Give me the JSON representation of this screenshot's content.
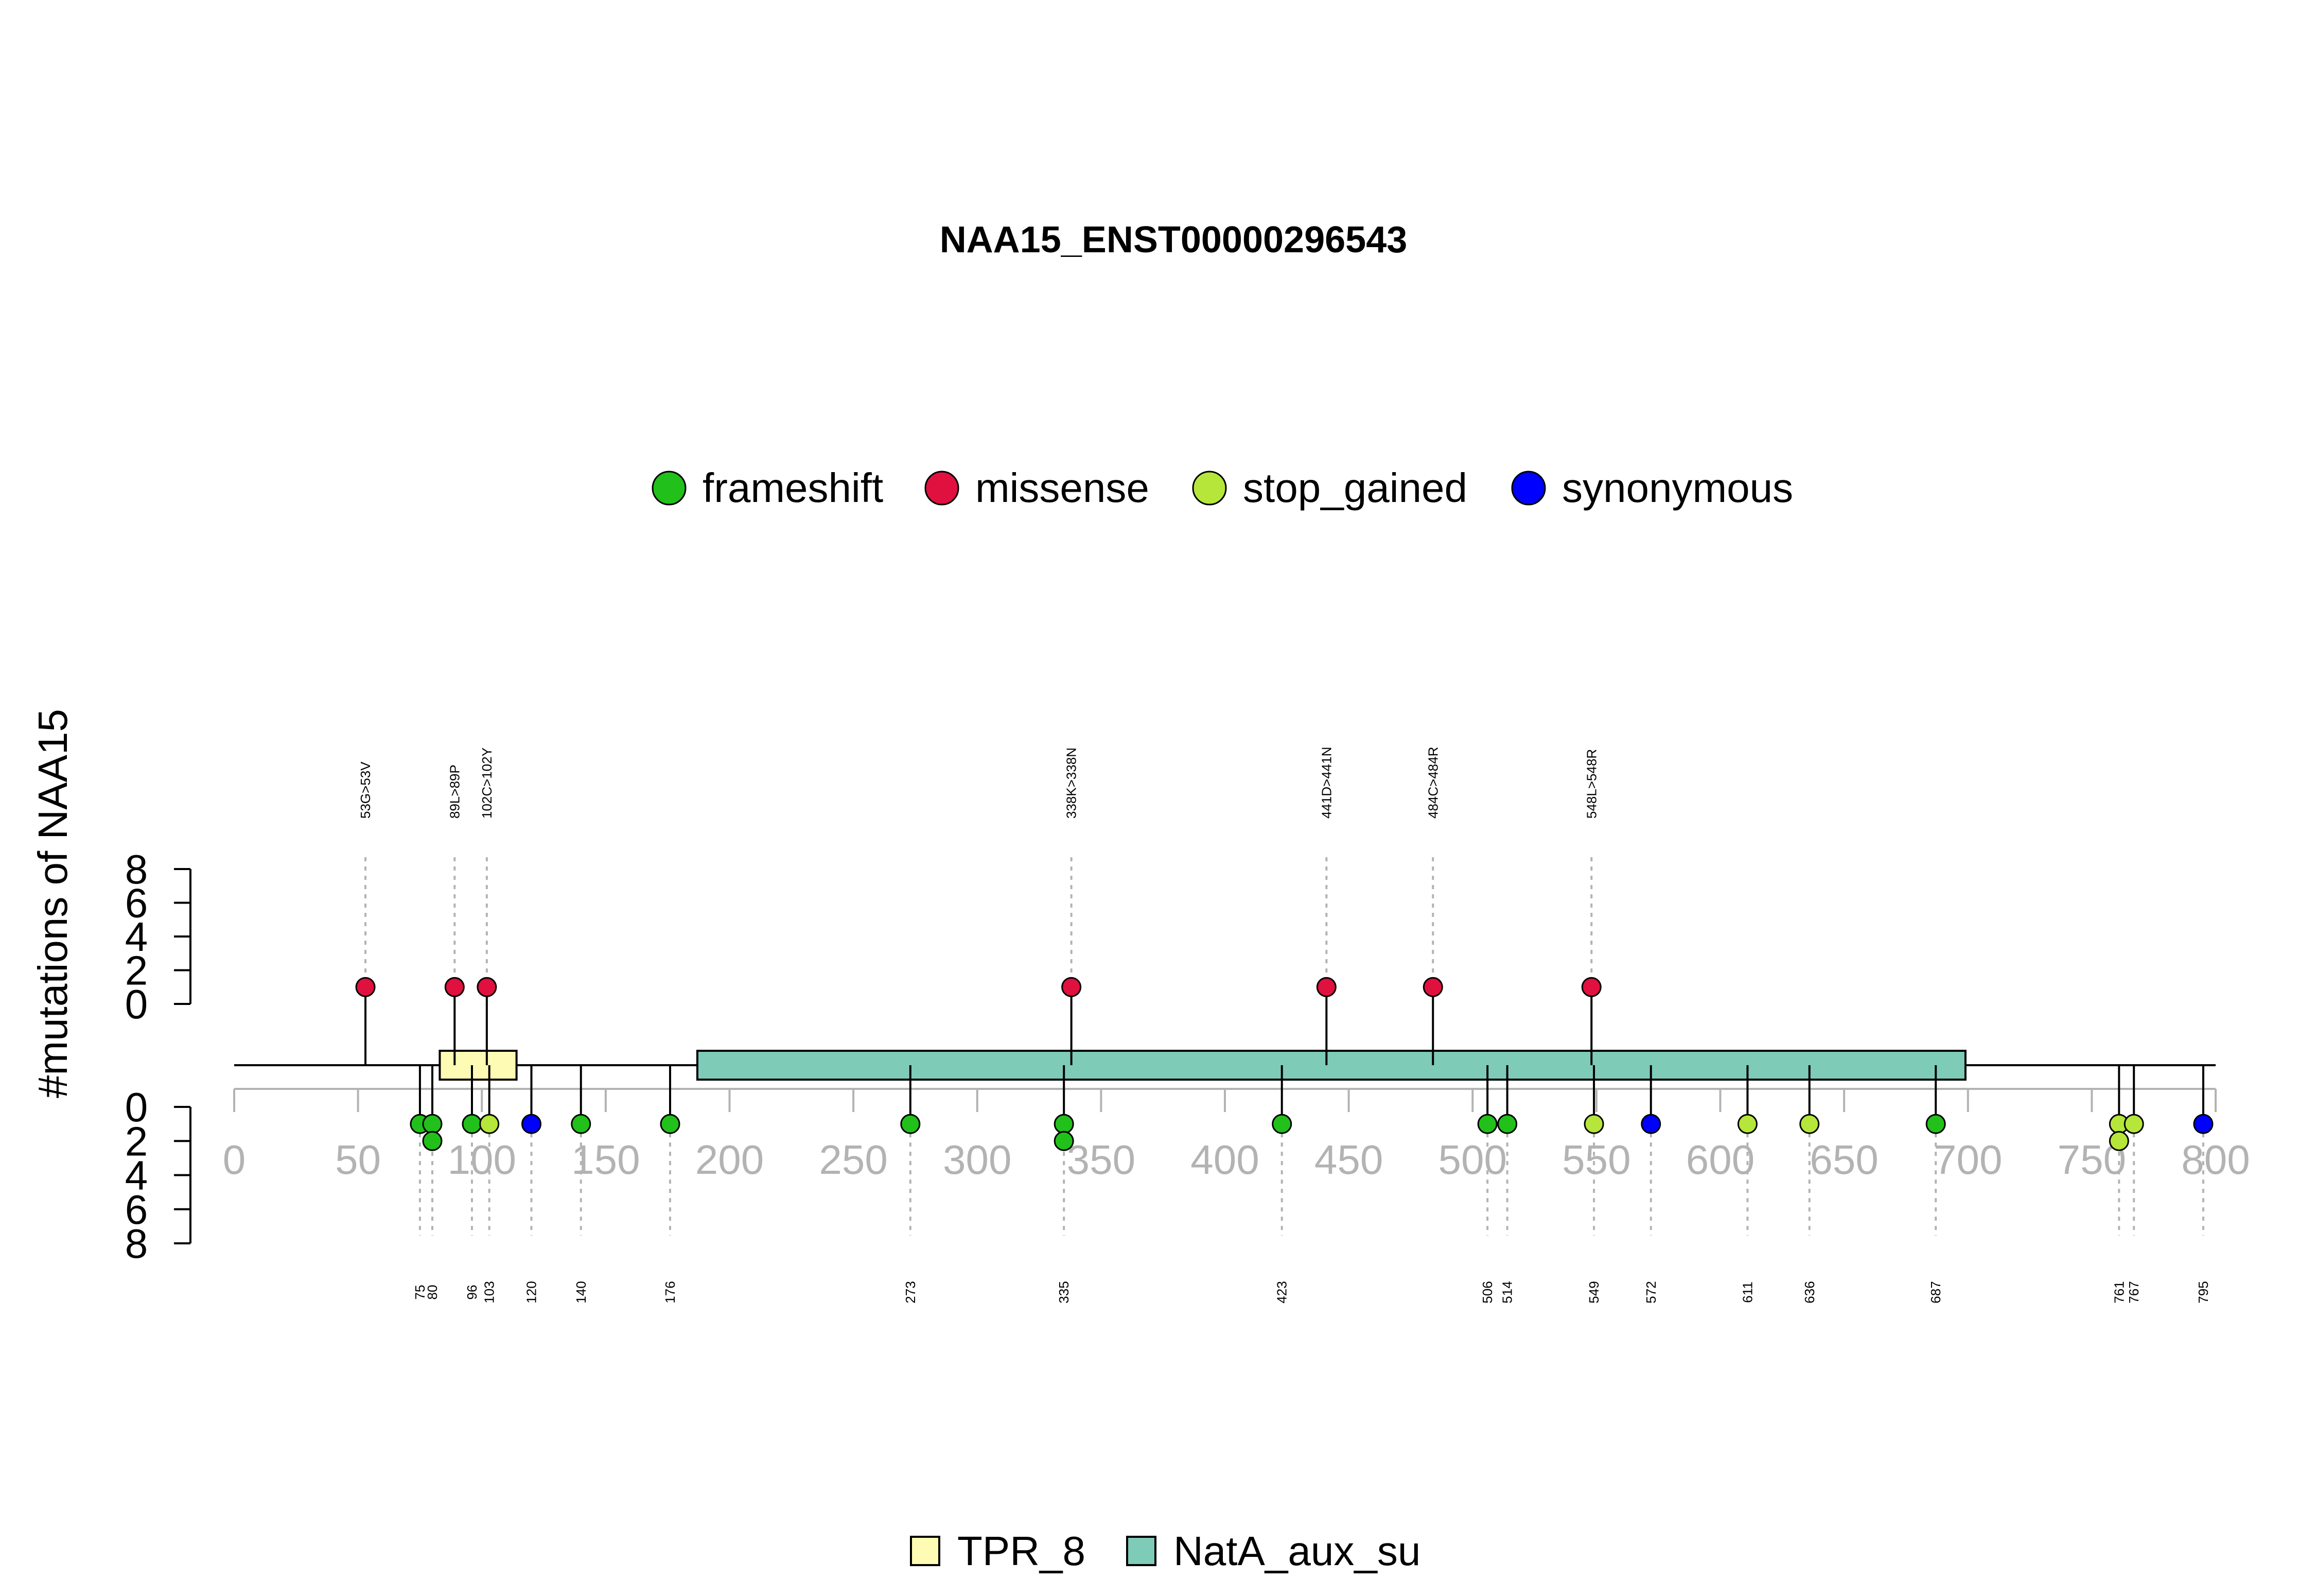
{
  "chart_data": {
    "type": "lollipop",
    "title": "NAA15_ENST00000296543",
    "ylabel": "#mutations of NAA15",
    "xlim": [
      0,
      800
    ],
    "x_ticks": [
      0,
      50,
      100,
      150,
      200,
      250,
      300,
      350,
      400,
      450,
      500,
      550,
      600,
      650,
      700,
      750,
      800
    ],
    "y_ticks": [
      0,
      2,
      4,
      6,
      8
    ],
    "ylim": [
      0,
      8
    ],
    "colors": {
      "frameshift": "#22c01a",
      "missense": "#e0103f",
      "stop_gained": "#b5e639",
      "synonymous": "#0000ff",
      "TPR_8": "#fdfbb4",
      "NatA_aux_su": "#7ecbb8"
    },
    "legend": [
      {
        "name": "frameshift",
        "color": "#22c01a"
      },
      {
        "name": "missense",
        "color": "#e0103f"
      },
      {
        "name": "stop_gained",
        "color": "#b5e639"
      },
      {
        "name": "synonymous",
        "color": "#0000ff"
      }
    ],
    "domain_legend": [
      {
        "name": "TPR_8",
        "color": "#fdfbb4"
      },
      {
        "name": "NatA_aux_su",
        "color": "#7ecbb8"
      }
    ],
    "domains": [
      {
        "name": "TPR_8",
        "start": 83,
        "end": 114
      },
      {
        "name": "NatA_aux_su",
        "start": 187,
        "end": 699
      }
    ],
    "top_mutations": [
      {
        "position": 53,
        "label": "53G>53V",
        "type": "missense",
        "count": 1
      },
      {
        "position": 89,
        "label": "89L>89P",
        "type": "missense",
        "count": 1
      },
      {
        "position": 102,
        "label": "102C>102Y",
        "type": "missense",
        "count": 1
      },
      {
        "position": 338,
        "label": "338K>338N",
        "type": "missense",
        "count": 1
      },
      {
        "position": 441,
        "label": "441D>441N",
        "type": "missense",
        "count": 1
      },
      {
        "position": 484,
        "label": "484C>484R",
        "type": "missense",
        "count": 1
      },
      {
        "position": 548,
        "label": "548L>548R",
        "type": "missense",
        "count": 1
      }
    ],
    "bottom_mutations": [
      {
        "position": 75,
        "label": "75",
        "type": "frameshift",
        "count": 1
      },
      {
        "position": 80,
        "label": "80",
        "type": "frameshift",
        "count": 2
      },
      {
        "position": 96,
        "label": "96",
        "type": "frameshift",
        "count": 1
      },
      {
        "position": 103,
        "label": "103",
        "type": "stop_gained",
        "count": 1
      },
      {
        "position": 120,
        "label": "120",
        "type": "synonymous",
        "count": 1
      },
      {
        "position": 140,
        "label": "140",
        "type": "frameshift",
        "count": 1
      },
      {
        "position": 176,
        "label": "176",
        "type": "frameshift",
        "count": 1
      },
      {
        "position": 273,
        "label": "273",
        "type": "frameshift",
        "count": 1
      },
      {
        "position": 335,
        "label": "335",
        "type": "frameshift",
        "count": 2
      },
      {
        "position": 423,
        "label": "423",
        "type": "frameshift",
        "count": 1
      },
      {
        "position": 506,
        "label": "506",
        "type": "frameshift",
        "count": 1
      },
      {
        "position": 514,
        "label": "514",
        "type": "frameshift",
        "count": 1
      },
      {
        "position": 549,
        "label": "549",
        "type": "stop_gained",
        "count": 1
      },
      {
        "position": 572,
        "label": "572",
        "type": "synonymous",
        "count": 1
      },
      {
        "position": 611,
        "label": "611",
        "type": "stop_gained",
        "count": 1
      },
      {
        "position": 636,
        "label": "636",
        "type": "stop_gained",
        "count": 1
      },
      {
        "position": 687,
        "label": "687",
        "type": "frameshift",
        "count": 1
      },
      {
        "position": 761,
        "label": "761",
        "type": "stop_gained",
        "count": 2
      },
      {
        "position": 767,
        "label": "767",
        "type": "stop_gained",
        "count": 1
      },
      {
        "position": 795,
        "label": "795",
        "type": "synonymous",
        "count": 1
      }
    ]
  }
}
